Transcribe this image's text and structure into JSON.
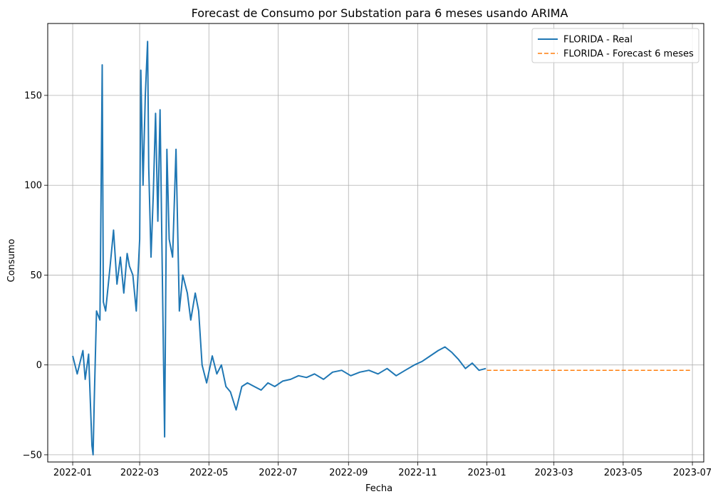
{
  "chart_data": {
    "type": "line",
    "title": "Forecast de Consumo por Substation para 6 meses usando ARIMA",
    "xlabel": "Fecha",
    "ylabel": "Consumo",
    "x_ticks": [
      "2022-01",
      "2022-03",
      "2022-05",
      "2022-07",
      "2022-09",
      "2022-11",
      "2023-01",
      "2023-03",
      "2023-05",
      "2023-07"
    ],
    "y_ticks": [
      -50,
      0,
      50,
      100,
      150
    ],
    "xlim": [
      "2021-12-10",
      "2023-07-11"
    ],
    "ylim": [
      -54,
      190
    ],
    "grid": true,
    "legend_position": "top-right",
    "series": [
      {
        "name": "FLORIDA - Real",
        "color": "#1f77b4",
        "style": "solid",
        "x": [
          "2022-01-01",
          "2022-01-05",
          "2022-01-10",
          "2022-01-12",
          "2022-01-15",
          "2022-01-18",
          "2022-01-19",
          "2022-01-20",
          "2022-01-22",
          "2022-01-25",
          "2022-01-27",
          "2022-01-28",
          "2022-01-30",
          "2022-02-03",
          "2022-02-06",
          "2022-02-09",
          "2022-02-12",
          "2022-02-15",
          "2022-02-18",
          "2022-02-20",
          "2022-02-23",
          "2022-02-26",
          "2022-03-01",
          "2022-03-02",
          "2022-03-04",
          "2022-03-06",
          "2022-03-08",
          "2022-03-09",
          "2022-03-11",
          "2022-03-13",
          "2022-03-15",
          "2022-03-17",
          "2022-03-19",
          "2022-03-21",
          "2022-03-23",
          "2022-03-25",
          "2022-03-27",
          "2022-03-30",
          "2022-04-02",
          "2022-04-05",
          "2022-04-08",
          "2022-04-12",
          "2022-04-15",
          "2022-04-19",
          "2022-04-22",
          "2022-04-25",
          "2022-04-29",
          "2022-05-04",
          "2022-05-08",
          "2022-05-12",
          "2022-05-16",
          "2022-05-20",
          "2022-05-25",
          "2022-05-30",
          "2022-06-04",
          "2022-06-10",
          "2022-06-16",
          "2022-06-22",
          "2022-06-28",
          "2022-07-05",
          "2022-07-12",
          "2022-07-19",
          "2022-07-26",
          "2022-08-02",
          "2022-08-10",
          "2022-08-18",
          "2022-08-26",
          "2022-09-03",
          "2022-09-11",
          "2022-09-19",
          "2022-09-27",
          "2022-10-05",
          "2022-10-13",
          "2022-10-21",
          "2022-10-29",
          "2022-11-05",
          "2022-11-12",
          "2022-11-19",
          "2022-11-25",
          "2022-12-01",
          "2022-12-07",
          "2022-12-13",
          "2022-12-19",
          "2022-12-25",
          "2022-12-31"
        ],
        "y": [
          5,
          -5,
          8,
          -8,
          6,
          -45,
          -50,
          -20,
          30,
          25,
          167,
          35,
          30,
          55,
          75,
          45,
          60,
          40,
          62,
          55,
          50,
          30,
          70,
          164,
          100,
          150,
          180,
          110,
          60,
          95,
          140,
          80,
          142,
          50,
          -40,
          120,
          70,
          60,
          120,
          30,
          50,
          40,
          25,
          40,
          30,
          0,
          -10,
          5,
          -5,
          0,
          -12,
          -15,
          -25,
          -12,
          -10,
          -12,
          -14,
          -10,
          -12,
          -9,
          -8,
          -6,
          -7,
          -5,
          -8,
          -4,
          -3,
          -6,
          -4,
          -3,
          -5,
          -2,
          -6,
          -3,
          0,
          2,
          5,
          8,
          10,
          7,
          3,
          -2,
          1,
          -3,
          -2
        ]
      },
      {
        "name": "FLORIDA - Forecast 6 meses",
        "color": "#ff7f0e",
        "style": "dashed",
        "x": [
          "2023-01-01",
          "2023-06-30"
        ],
        "y": [
          -3,
          -3
        ]
      }
    ]
  }
}
